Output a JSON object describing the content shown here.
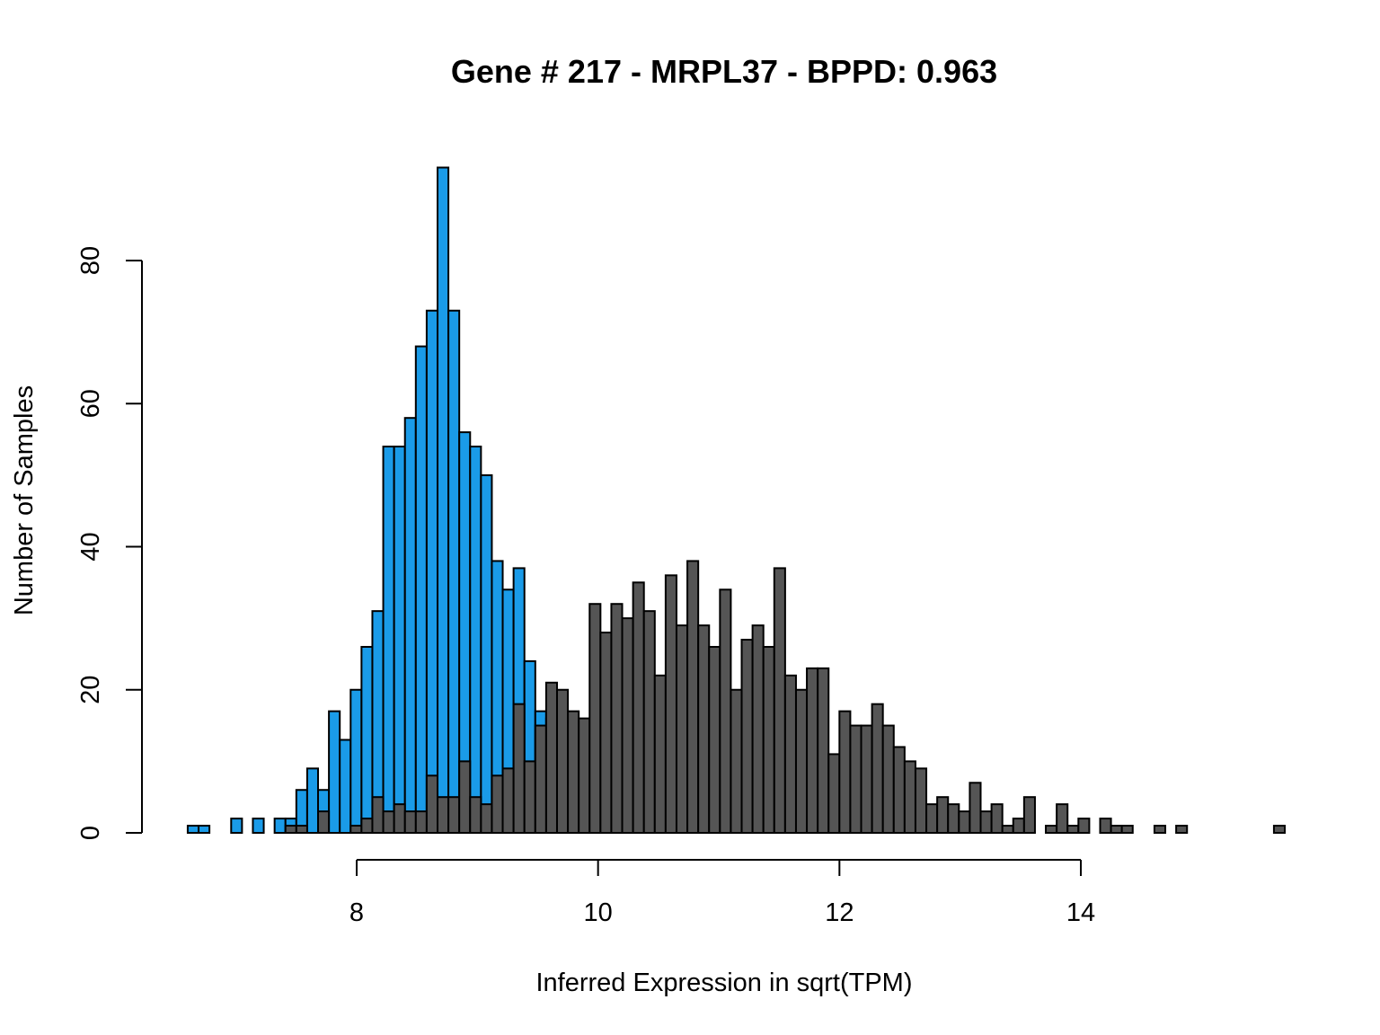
{
  "chart_data": {
    "type": "bar",
    "title": "Gene # 217 - MRPL37 - BPPD: 0.963",
    "xlabel": "Inferred Expression in sqrt(TPM)",
    "ylabel": "Number of Samples",
    "xlim": [
      6.6,
      15.6
    ],
    "ylim": [
      0,
      95
    ],
    "x_ticks": [
      8,
      10,
      12,
      14
    ],
    "y_ticks": [
      0,
      20,
      40,
      60,
      80
    ],
    "bin_width": 0.09,
    "grid": false,
    "series": [
      {
        "color": "#1a9be8",
        "start": 6.6,
        "values": [
          1,
          1,
          0,
          0,
          2,
          0,
          2,
          0,
          2,
          2,
          6,
          9,
          6,
          17,
          13,
          20,
          26,
          31,
          54,
          54,
          58,
          68,
          73,
          93,
          73,
          56,
          54,
          50,
          38,
          34,
          37,
          24,
          17,
          16,
          13,
          12,
          10,
          3,
          2,
          1,
          1,
          0,
          0,
          0,
          0,
          5,
          0,
          0,
          1,
          0,
          0,
          0,
          0,
          0,
          0,
          0,
          1,
          0,
          0,
          0,
          0,
          0,
          0,
          0,
          0,
          0,
          0,
          0,
          0,
          0,
          0,
          0,
          0,
          0,
          0,
          0,
          0,
          0,
          0,
          0,
          0,
          0,
          0,
          0,
          0,
          0,
          0,
          0,
          0,
          0
        ]
      },
      {
        "color": "#555555",
        "start": 6.6,
        "values": [
          0,
          0,
          0,
          0,
          0,
          0,
          0,
          0,
          0,
          1,
          1,
          0,
          3,
          0,
          0,
          1,
          2,
          5,
          3,
          4,
          3,
          3,
          8,
          5,
          5,
          10,
          5,
          4,
          8,
          9,
          18,
          10,
          15,
          21,
          20,
          17,
          16,
          32,
          28,
          32,
          30,
          35,
          31,
          22,
          36,
          29,
          38,
          29,
          26,
          34,
          20,
          27,
          29,
          26,
          37,
          22,
          20,
          23,
          23,
          11,
          17,
          15,
          15,
          18,
          15,
          12,
          10,
          9,
          4,
          5,
          4,
          3,
          7,
          3,
          4,
          1,
          2,
          5,
          0,
          1,
          4,
          1,
          2,
          0,
          2,
          1,
          1,
          0,
          0,
          1,
          0,
          1,
          0,
          0,
          0,
          0,
          0,
          0,
          0,
          0,
          1
        ]
      }
    ]
  }
}
